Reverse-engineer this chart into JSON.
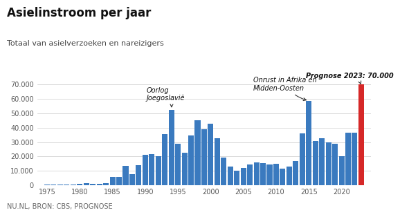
{
  "title": "Asielinstroom per jaar",
  "subtitle": "Totaal van asielverzoeken en nareizigers",
  "footer": "NU.NL, BRON: CBS, PROGNOSE",
  "years": [
    1975,
    1976,
    1977,
    1978,
    1979,
    1980,
    1981,
    1982,
    1983,
    1984,
    1985,
    1986,
    1987,
    1988,
    1989,
    1990,
    1991,
    1992,
    1993,
    1994,
    1995,
    1996,
    1997,
    1998,
    1999,
    2000,
    2001,
    2002,
    2003,
    2004,
    2005,
    2006,
    2007,
    2008,
    2009,
    2010,
    2011,
    2012,
    2013,
    2014,
    2015,
    2016,
    2017,
    2018,
    2019,
    2020,
    2021,
    2022,
    2023
  ],
  "values": [
    500,
    500,
    500,
    500,
    500,
    1000,
    1500,
    1000,
    1000,
    1500,
    5800,
    5900,
    13500,
    7500,
    13900,
    21200,
    21600,
    20300,
    35400,
    52500,
    29000,
    22500,
    34500,
    45000,
    39000,
    43000,
    32500,
    19000,
    13000,
    9900,
    12000,
    14600,
    15800,
    15400,
    14500,
    15100,
    11500,
    13000,
    17000,
    36000,
    58800,
    31000,
    32600,
    29600,
    29000,
    20000,
    36700,
    36700,
    70000
  ],
  "bar_color": "#3a7abf",
  "prognose_color": "#d62828",
  "ylim": [
    0,
    75000
  ],
  "yticks": [
    0,
    10000,
    20000,
    30000,
    40000,
    50000,
    60000,
    70000
  ],
  "xticks": [
    1975,
    1980,
    1985,
    1990,
    1995,
    2000,
    2005,
    2010,
    2015,
    2020
  ],
  "annotation_oorlog_text": "Oorlog\nJoegoslavië",
  "annotation_onrust_text": "Onrust in Afrika en\nMidden-Oosten",
  "annotation_prognose_text": "Prognose 2023: 70.000",
  "background_color": "#ffffff",
  "grid_color": "#cccccc",
  "title_fontsize": 12,
  "subtitle_fontsize": 8,
  "footer_fontsize": 7,
  "annot_fontsize": 7,
  "axis_fontsize": 7
}
